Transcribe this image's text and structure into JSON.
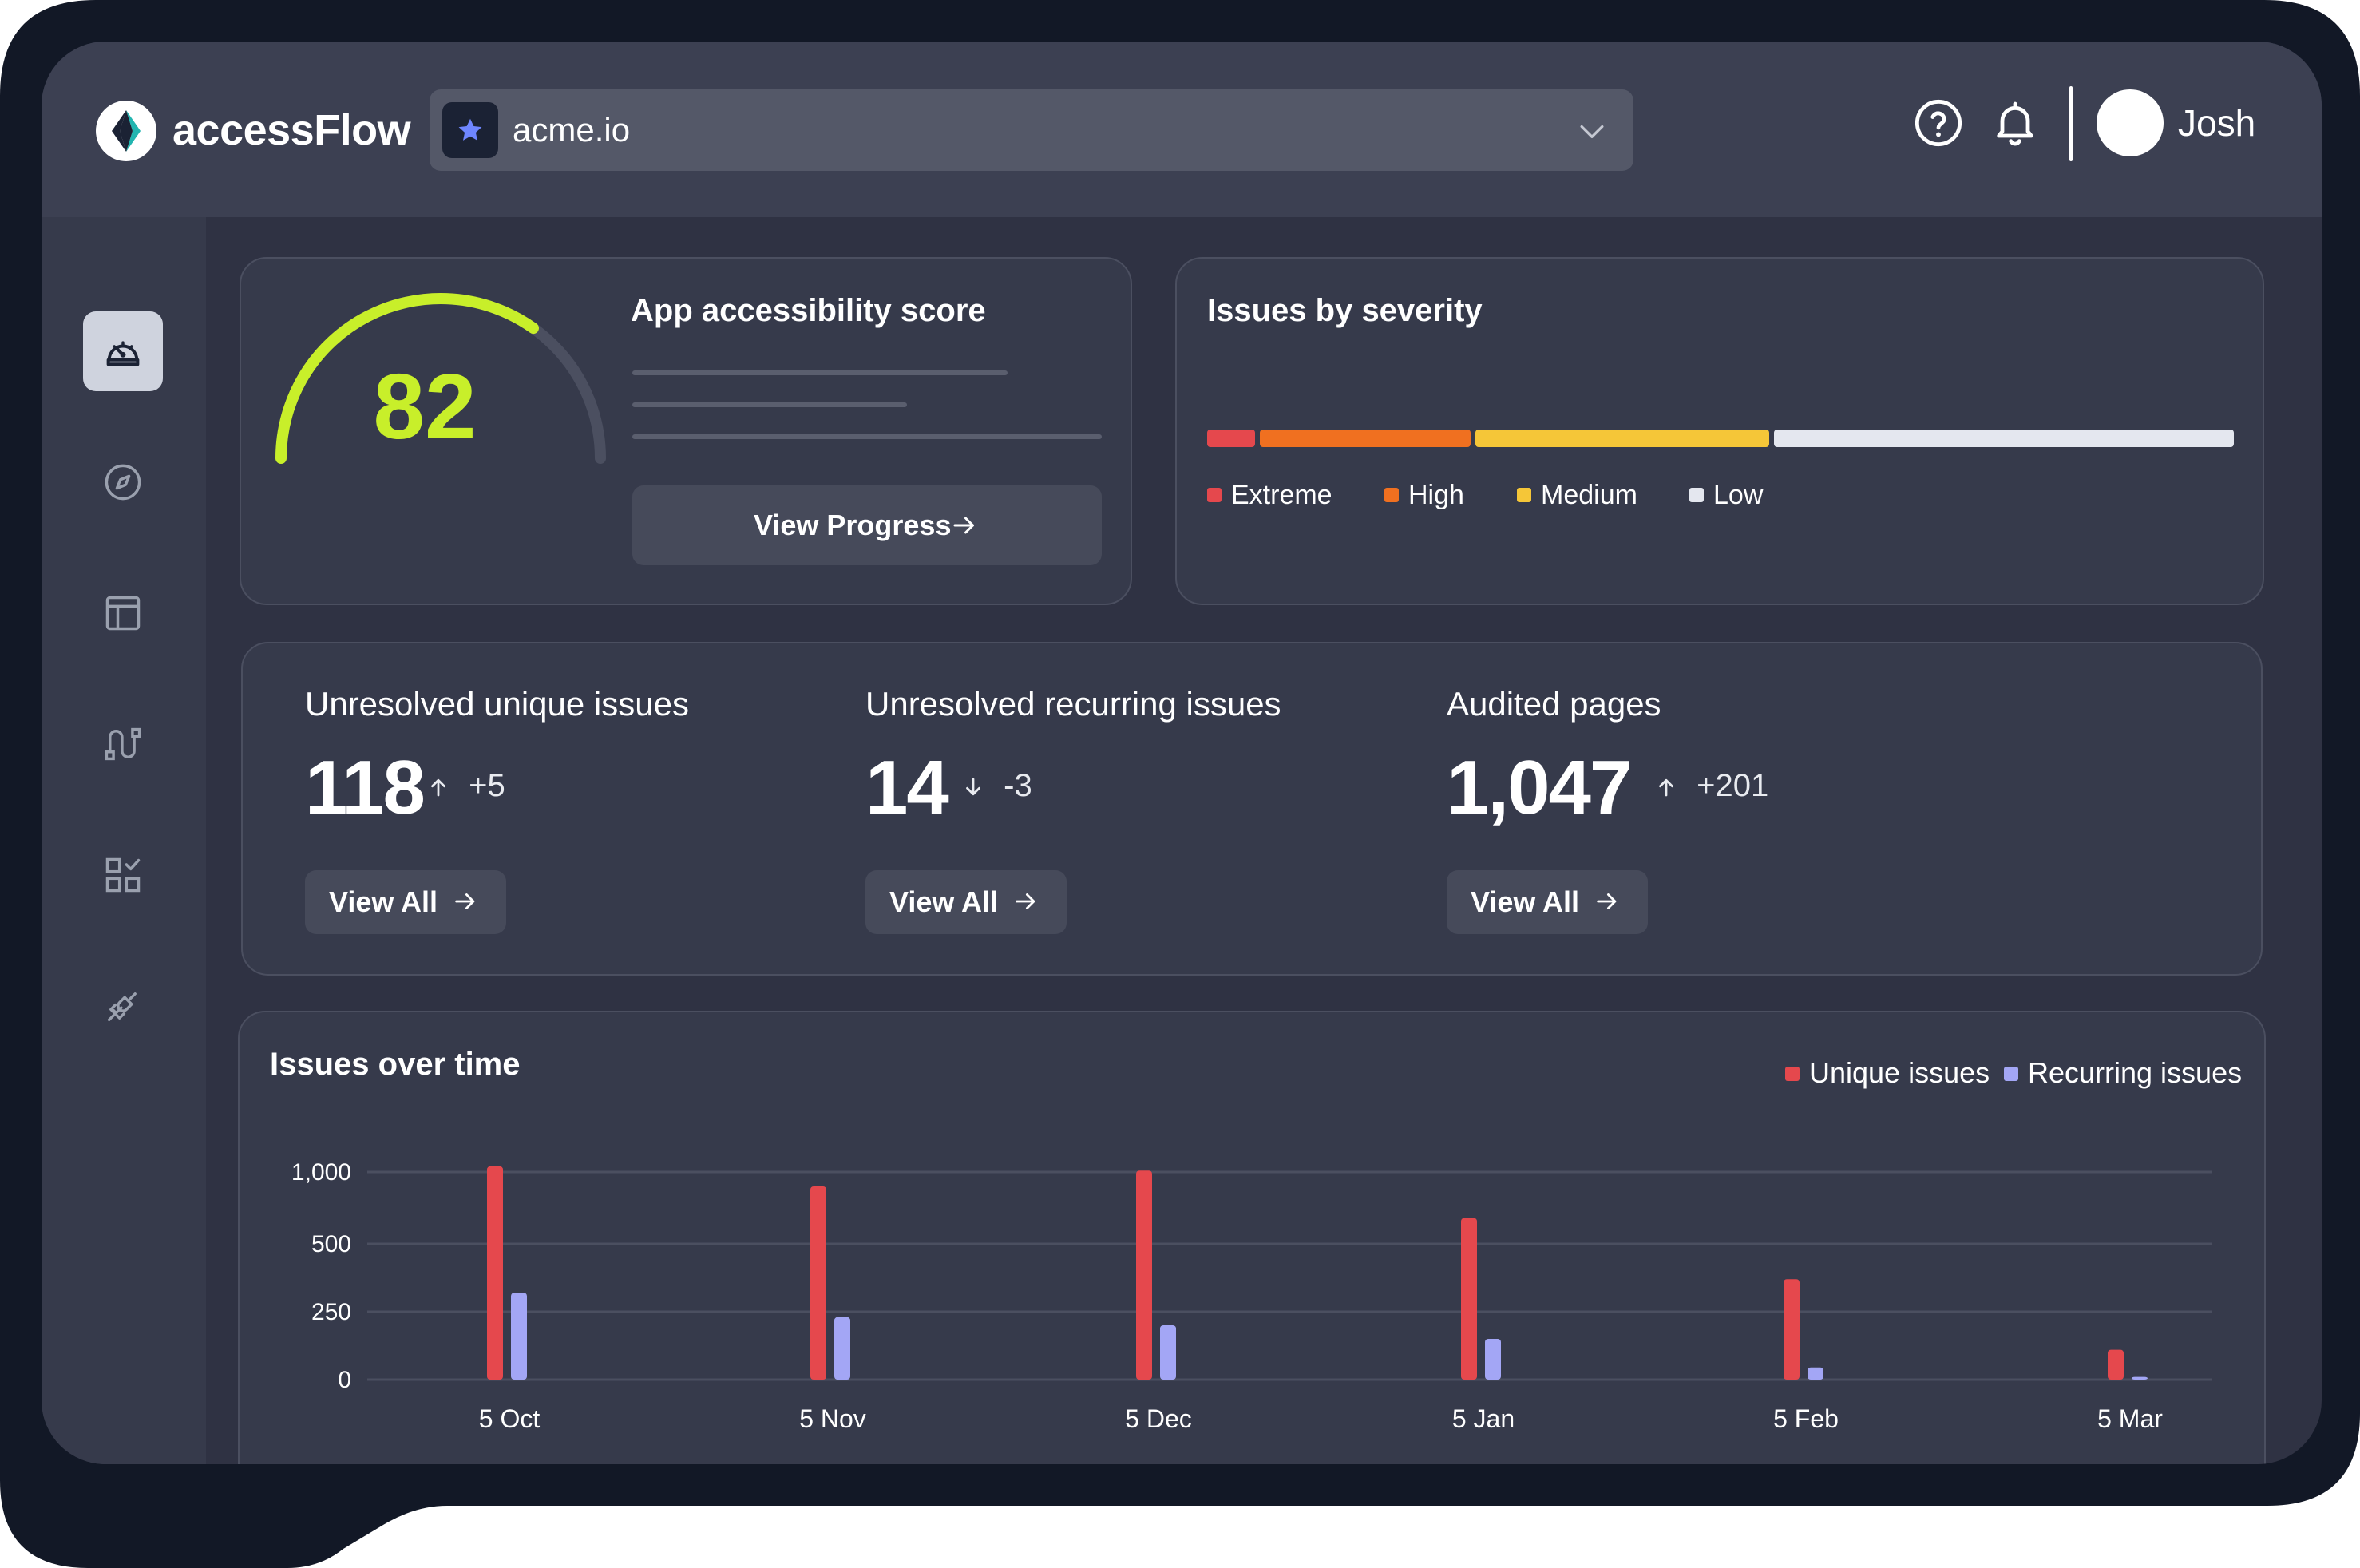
{
  "app": {
    "logo_text": "accessFlow",
    "project_name": "acme.io",
    "user_name": "Josh"
  },
  "icons": {
    "logo": "accessflow-logo-icon",
    "project": "star-icon",
    "dropdown": "chevron-down-icon",
    "help": "help-circle-icon",
    "notifications": "bell-icon"
  },
  "sidebar": {
    "items": [
      {
        "name": "dashboard",
        "icon": "gauge-icon",
        "active": true
      },
      {
        "name": "explore",
        "icon": "compass-icon",
        "active": false
      },
      {
        "name": "layout",
        "icon": "layout-icon",
        "active": false
      },
      {
        "name": "flows",
        "icon": "flow-icon",
        "active": false
      },
      {
        "name": "checklist",
        "icon": "checklist-grid-icon",
        "active": false
      },
      {
        "name": "integrations",
        "icon": "plug-icon",
        "active": false
      }
    ]
  },
  "score_card": {
    "title": "App accessibility score",
    "score": "82",
    "score_fraction": 0.82,
    "button_label": "View Progress"
  },
  "severity_card": {
    "title": "Issues by severity",
    "segments": [
      {
        "label": "Extreme",
        "color": "#e5484d"
      },
      {
        "label": "High",
        "color": "#f07020"
      },
      {
        "label": "Medium",
        "color": "#f5c638"
      },
      {
        "label": "Low",
        "color": "#e4e7ef"
      }
    ]
  },
  "stats": [
    {
      "label": "Unresolved unique issues",
      "value": "118",
      "delta": "+5",
      "direction": "up",
      "button_label": "View All"
    },
    {
      "label": "Unresolved recurring issues",
      "value": "14",
      "delta": "-3",
      "direction": "down",
      "button_label": "View All"
    },
    {
      "label": "Audited pages",
      "value": "1,047",
      "delta": "+201",
      "direction": "up",
      "button_label": "View All"
    }
  ],
  "chart_card": {
    "title": "Issues over time"
  },
  "colors": {
    "unique": "#e5484d",
    "recurring": "#a3a6f5",
    "score": "#c8ef2a"
  },
  "chart_data": {
    "type": "bar",
    "categories": [
      "5 Oct",
      "5 Nov",
      "5 Dec",
      "5 Jan",
      "5 Feb",
      "5 Mar"
    ],
    "series": [
      {
        "name": "Unique issues",
        "values": [
          1040,
          900,
          1010,
          680,
          370,
          110
        ]
      },
      {
        "name": "Recurring issues",
        "values": [
          320,
          230,
          200,
          150,
          45,
          10
        ]
      }
    ],
    "yticks": [
      "0",
      "250",
      "500",
      "1,000"
    ],
    "ytick_values": [
      0,
      250,
      500,
      1000
    ],
    "legend_position": "top-right",
    "grid": true
  }
}
